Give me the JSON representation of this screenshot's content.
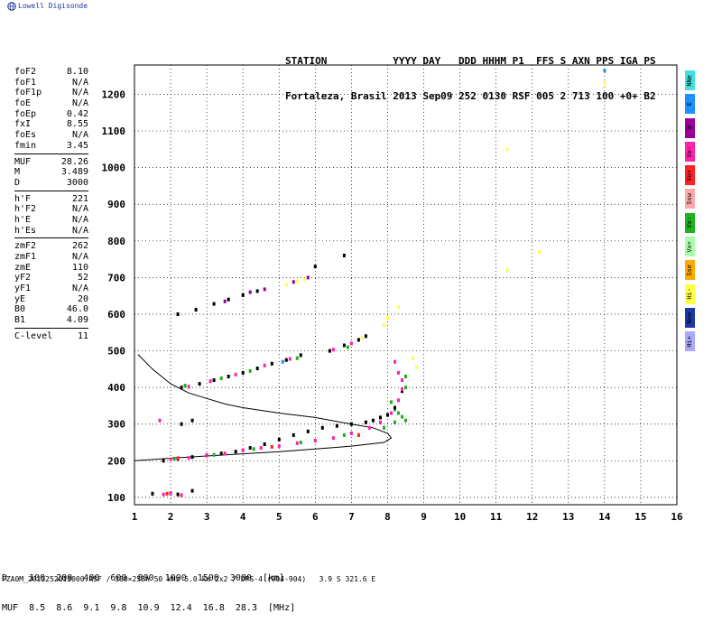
{
  "logo": {
    "text": "Lowell Digisonde",
    "icon": "globe-icon"
  },
  "header": {
    "line1": "STATION           YYYY DAY   DDD HHHM P1  FFS S AXN PPS IGA PS",
    "line2": "Fortaleza, Brasil 2013 Sep09 252 0130 RSF 005 2 713 100 +0+ B2"
  },
  "params": [
    [
      [
        "foF2",
        "8.10"
      ],
      [
        "foF1",
        "N/A"
      ],
      [
        "foF1p",
        "N/A"
      ],
      [
        "foE",
        "N/A"
      ],
      [
        "foEp",
        "0.42"
      ],
      [
        "fxI",
        "8.55"
      ],
      [
        "foEs",
        "N/A"
      ],
      [
        "fmin",
        "3.45"
      ]
    ],
    [
      [
        "MUF",
        "28.26"
      ],
      [
        "M",
        "3.489"
      ],
      [
        "D",
        "3000"
      ]
    ],
    [
      [
        "h'F",
        "221"
      ],
      [
        "h'F2",
        "N/A"
      ],
      [
        "h'E",
        "N/A"
      ],
      [
        "h'Es",
        "N/A"
      ]
    ],
    [
      [
        "zmF2",
        "262"
      ],
      [
        "zmF1",
        "N/A"
      ],
      [
        "zmE",
        "110"
      ],
      [
        "yF2",
        "52"
      ],
      [
        "yF1",
        "N/A"
      ],
      [
        "yE",
        "20"
      ],
      [
        "B0",
        "46.0"
      ],
      [
        "B1",
        "4.09"
      ]
    ],
    [
      [
        "C-level",
        "11"
      ]
    ]
  ],
  "legend": [
    {
      "label": "NNe",
      "color": "#44e0e0"
    },
    {
      "label": "E",
      "color": "#1e90ff"
    },
    {
      "label": "W",
      "color": "#9a009a"
    },
    {
      "label": "Vo-",
      "color": "#ff22aa"
    },
    {
      "label": "Vo+",
      "color": "#ff2020"
    },
    {
      "label": "Ssw",
      "color": "#ffaaaa"
    },
    {
      "label": "Vx-",
      "color": "#20b020"
    },
    {
      "label": "Vx+",
      "color": "#aaffaa"
    },
    {
      "label": "Sse",
      "color": "#ffaa00"
    },
    {
      "label": "Hi-",
      "color": "#ffff44"
    },
    {
      "label": "Nnw",
      "color": "#1a3aaa"
    },
    {
      "label": "Hi+",
      "color": "#aaaaff"
    }
  ],
  "muf_table": {
    "line1": "D    100  200  400  600  800  1000  1500  3000  [km]",
    "line2": "MUF  8.5  8.6  9.1  9.8  10.9  12.4  16.8  28.3  [MHz]"
  },
  "footer": "FZA0M_2013252013000.RSF / 300×256h 50 kHz 5.0 km 2x2 / DPS-4 (904-904)   3.9 S 321.6 E",
  "chart_data": {
    "type": "scatter",
    "xlim": [
      1,
      16
    ],
    "ylim": [
      80,
      1280
    ],
    "x_ticks": [
      1,
      2,
      3,
      4,
      5,
      6,
      7,
      8,
      9,
      10,
      11,
      12,
      13,
      14,
      15,
      16
    ],
    "y_ticks": [
      100,
      200,
      300,
      400,
      500,
      600,
      700,
      800,
      900,
      1000,
      1100,
      1200
    ],
    "grid": true,
    "legend_placement": "right",
    "traces": [
      {
        "color": "#000000",
        "points": [
          [
            2.2,
            600
          ],
          [
            2.7,
            612
          ],
          [
            3.2,
            628
          ],
          [
            3.6,
            640
          ],
          [
            4.0,
            652
          ],
          [
            4.4,
            663
          ],
          [
            6.0,
            730
          ],
          [
            6.8,
            760
          ]
        ]
      },
      {
        "color": "#9a009a",
        "points": [
          [
            3.5,
            635
          ],
          [
            4.2,
            660
          ],
          [
            4.6,
            668
          ],
          [
            5.4,
            688
          ],
          [
            5.8,
            700
          ]
        ]
      },
      {
        "color": "#ffff44",
        "points": [
          [
            5.2,
            680
          ],
          [
            5.5,
            690
          ],
          [
            5.7,
            695
          ],
          [
            7.3,
            535
          ],
          [
            7.9,
            570
          ],
          [
            8.0,
            590
          ],
          [
            8.3,
            620
          ],
          [
            8.7,
            480
          ],
          [
            8.8,
            455
          ],
          [
            11.3,
            1050
          ],
          [
            11.3,
            720
          ],
          [
            12.2,
            770
          ],
          [
            14.0,
            1230
          ]
        ]
      },
      {
        "color": "#1e90ff",
        "points": [
          [
            14.0,
            1265
          ],
          [
            5.1,
            470
          ],
          [
            2.0,
            110
          ]
        ]
      },
      {
        "color": "#000000",
        "points": [
          [
            2.3,
            400
          ],
          [
            2.8,
            410
          ],
          [
            3.2,
            420
          ],
          [
            3.6,
            430
          ],
          [
            4.0,
            440
          ],
          [
            4.4,
            452
          ],
          [
            4.8,
            465
          ],
          [
            5.2,
            475
          ],
          [
            5.6,
            488
          ],
          [
            6.4,
            500
          ],
          [
            6.8,
            515
          ],
          [
            7.2,
            530
          ],
          [
            7.4,
            540
          ]
        ]
      },
      {
        "color": "#ff22aa",
        "points": [
          [
            2.5,
            402
          ],
          [
            3.1,
            417
          ],
          [
            3.8,
            435
          ],
          [
            4.6,
            460
          ],
          [
            5.3,
            478
          ],
          [
            6.5,
            503
          ],
          [
            7.0,
            520
          ],
          [
            8.2,
            470
          ],
          [
            8.3,
            440
          ],
          [
            8.4,
            420
          ]
        ]
      },
      {
        "color": "#20b020",
        "points": [
          [
            2.4,
            405
          ],
          [
            3.4,
            425
          ],
          [
            4.2,
            445
          ],
          [
            5.5,
            480
          ],
          [
            6.9,
            510
          ],
          [
            8.1,
            360
          ],
          [
            8.2,
            340
          ],
          [
            8.3,
            330
          ],
          [
            8.4,
            320
          ],
          [
            8.5,
            310
          ]
        ]
      },
      {
        "color": "#000000",
        "points": [
          [
            1.8,
            200
          ],
          [
            2.2,
            205
          ],
          [
            2.6,
            210
          ],
          [
            3.0,
            215
          ],
          [
            3.4,
            220
          ],
          [
            3.8,
            225
          ],
          [
            4.2,
            235
          ],
          [
            4.6,
            245
          ],
          [
            5.0,
            258
          ],
          [
            5.4,
            270
          ],
          [
            5.8,
            280
          ],
          [
            6.2,
            290
          ],
          [
            6.6,
            295
          ],
          [
            7.0,
            300
          ],
          [
            7.4,
            305
          ],
          [
            7.6,
            310
          ],
          [
            7.8,
            318
          ],
          [
            8.0,
            325
          ],
          [
            8.2,
            345
          ],
          [
            8.4,
            390
          ]
        ]
      },
      {
        "color": "#ff22aa",
        "points": [
          [
            2.0,
            204
          ],
          [
            2.5,
            208
          ],
          [
            3.0,
            214
          ],
          [
            3.5,
            220
          ],
          [
            4.0,
            228
          ],
          [
            4.5,
            235
          ],
          [
            5.0,
            240
          ],
          [
            5.5,
            248
          ],
          [
            6.0,
            255
          ],
          [
            6.5,
            262
          ],
          [
            7.0,
            275
          ],
          [
            7.5,
            290
          ],
          [
            7.8,
            305
          ],
          [
            8.1,
            330
          ],
          [
            8.3,
            365
          ],
          [
            8.4,
            395
          ]
        ]
      },
      {
        "color": "#20b020",
        "points": [
          [
            2.1,
            206
          ],
          [
            3.2,
            216
          ],
          [
            4.3,
            232
          ],
          [
            5.6,
            250
          ],
          [
            6.8,
            270
          ],
          [
            7.9,
            290
          ],
          [
            8.2,
            305
          ],
          [
            8.5,
            400
          ],
          [
            8.5,
            430
          ]
        ]
      },
      {
        "color": "#ff2020",
        "points": [
          [
            2.2,
            207
          ],
          [
            4.8,
            238
          ],
          [
            7.2,
            270
          ],
          [
            1.9,
            110
          ]
        ]
      },
      {
        "color": "#ff22aa",
        "points": [
          [
            1.8,
            108
          ],
          [
            2.0,
            112
          ],
          [
            2.3,
            106
          ],
          [
            1.7,
            310
          ]
        ]
      },
      {
        "color": "#000000",
        "points": [
          [
            1.5,
            110
          ],
          [
            2.2,
            108
          ],
          [
            2.6,
            118
          ],
          [
            2.3,
            300
          ],
          [
            2.6,
            310
          ]
        ]
      }
    ],
    "model_curves": [
      {
        "color": "#000000",
        "points": [
          [
            1.1,
            490
          ],
          [
            1.5,
            450
          ],
          [
            2.0,
            410
          ],
          [
            2.5,
            385
          ],
          [
            3.0,
            370
          ],
          [
            3.5,
            355
          ],
          [
            4.0,
            345
          ],
          [
            5.0,
            330
          ],
          [
            6.0,
            318
          ],
          [
            7.0,
            300
          ],
          [
            7.6,
            290
          ],
          [
            8.0,
            275
          ],
          [
            8.1,
            262
          ],
          [
            7.9,
            250
          ],
          [
            7.0,
            240
          ],
          [
            6.0,
            232
          ],
          [
            5.0,
            225
          ],
          [
            4.0,
            219
          ],
          [
            3.0,
            213
          ],
          [
            2.0,
            207
          ],
          [
            1.0,
            200
          ]
        ]
      }
    ]
  }
}
